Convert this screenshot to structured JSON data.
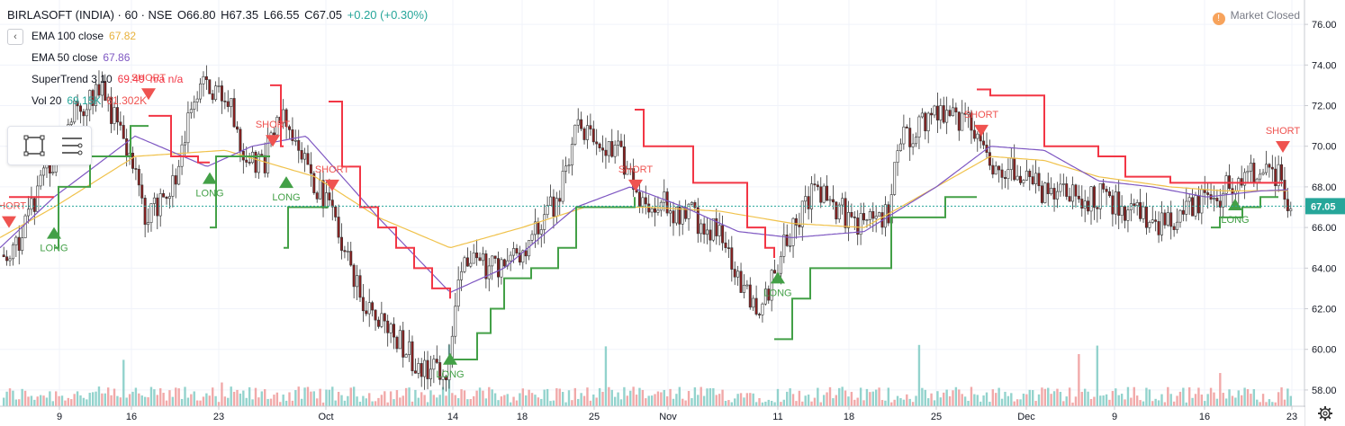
{
  "header": {
    "symbol": "BIRLASOFT (INDIA) · 60 · NSE",
    "open": "O66.80",
    "high": "H67.35",
    "low": "L66.55",
    "close": "C67.05",
    "change": "+0.20 (+0.30%)"
  },
  "indicators": [
    {
      "name": "EMA 100 close",
      "value": "67.82",
      "color": "#e8b13b"
    },
    {
      "name": "EMA 50 close",
      "value": "67.86",
      "color": "#7e57c2"
    },
    {
      "name": "SuperTrend 3 10",
      "value": "69.49",
      "extra": "n/a n/a",
      "color": "#f23645"
    },
    {
      "name": "Vol 20",
      "value": "69.15K",
      "extra": "61.302K",
      "color": "#26a69a"
    }
  ],
  "market_status": "Market Closed",
  "last_price_label": "67.05",
  "colors": {
    "up": "#4a7a45",
    "down": "#8b2020",
    "supertrend_up": "#43a047",
    "supertrend_down": "#f23645",
    "ema50": "#7e57c2",
    "ema100": "#f0c24b",
    "vol_up": "#80cbc4",
    "vol_down": "#ef9a9a"
  },
  "chart_data": {
    "type": "line",
    "title": "BIRLASOFT (INDIA) · 60 · NSE",
    "y_ticks": [
      58,
      60,
      62,
      64,
      66,
      68,
      70,
      72,
      74,
      76
    ],
    "ylim": [
      57.2,
      77.2
    ],
    "x_ticks": [
      "9",
      "16",
      "23",
      "Oct",
      "14",
      "18",
      "25",
      "Nov",
      "11",
      "18",
      "25",
      "Dec",
      "9",
      "16",
      "23"
    ],
    "bar_count": 420,
    "price_knots": [
      [
        0,
        64.5
      ],
      [
        20,
        65.5
      ],
      [
        50,
        68.5
      ],
      [
        80,
        71.5
      ],
      [
        110,
        73.0
      ],
      [
        140,
        70.0
      ],
      [
        160,
        66.5
      ],
      [
        190,
        68.0
      ],
      [
        220,
        73.0
      ],
      [
        250,
        72.5
      ],
      [
        270,
        69.5
      ],
      [
        290,
        69.0
      ],
      [
        310,
        71.5
      ],
      [
        330,
        70.5
      ],
      [
        350,
        68.0
      ],
      [
        370,
        66.5
      ],
      [
        395,
        63.0
      ],
      [
        420,
        61.5
      ],
      [
        445,
        60.2
      ],
      [
        470,
        59.0
      ],
      [
        495,
        58.8
      ],
      [
        510,
        64.5
      ],
      [
        540,
        64.0
      ],
      [
        570,
        64.5
      ],
      [
        595,
        66.0
      ],
      [
        620,
        67.5
      ],
      [
        640,
        71.0
      ],
      [
        665,
        70.0
      ],
      [
        690,
        69.5
      ],
      [
        710,
        67.5
      ],
      [
        740,
        67.0
      ],
      [
        770,
        66.5
      ],
      [
        800,
        65.5
      ],
      [
        825,
        63.0
      ],
      [
        845,
        62.0
      ],
      [
        865,
        64.5
      ],
      [
        885,
        66.5
      ],
      [
        905,
        68.0
      ],
      [
        930,
        67.0
      ],
      [
        955,
        66.0
      ],
      [
        985,
        66.5
      ],
      [
        995,
        70.0
      ],
      [
        1020,
        71.0
      ],
      [
        1050,
        71.5
      ],
      [
        1080,
        71.0
      ],
      [
        1100,
        69.0
      ],
      [
        1130,
        69.0
      ],
      [
        1160,
        67.5
      ],
      [
        1190,
        67.5
      ],
      [
        1220,
        67.5
      ],
      [
        1245,
        67.0
      ],
      [
        1270,
        66.5
      ],
      [
        1300,
        66.0
      ],
      [
        1325,
        67.0
      ],
      [
        1350,
        67.5
      ],
      [
        1375,
        68.5
      ],
      [
        1400,
        69.0
      ],
      [
        1420,
        68.5
      ],
      [
        1433,
        67.05
      ]
    ],
    "ema100_knots": [
      [
        0,
        65.5
      ],
      [
        60,
        67.0
      ],
      [
        150,
        69.5
      ],
      [
        250,
        69.8
      ],
      [
        350,
        68.5
      ],
      [
        420,
        66.5
      ],
      [
        500,
        65.0
      ],
      [
        580,
        66.0
      ],
      [
        650,
        67.0
      ],
      [
        720,
        67.0
      ],
      [
        800,
        66.8
      ],
      [
        880,
        66.2
      ],
      [
        960,
        66.0
      ],
      [
        1040,
        68.0
      ],
      [
        1100,
        69.5
      ],
      [
        1160,
        69.3
      ],
      [
        1220,
        68.5
      ],
      [
        1300,
        68.0
      ],
      [
        1360,
        67.8
      ],
      [
        1433,
        67.82
      ]
    ],
    "ema50_knots": [
      [
        0,
        65.0
      ],
      [
        60,
        67.5
      ],
      [
        150,
        70.5
      ],
      [
        230,
        69.0
      ],
      [
        280,
        70.0
      ],
      [
        340,
        70.5
      ],
      [
        420,
        66.5
      ],
      [
        500,
        62.8
      ],
      [
        560,
        64.0
      ],
      [
        640,
        67.0
      ],
      [
        700,
        68.0
      ],
      [
        760,
        67.0
      ],
      [
        820,
        65.8
      ],
      [
        880,
        65.5
      ],
      [
        960,
        65.8
      ],
      [
        1040,
        68.0
      ],
      [
        1100,
        70.0
      ],
      [
        1160,
        69.8
      ],
      [
        1220,
        68.3
      ],
      [
        1280,
        68.0
      ],
      [
        1340,
        67.5
      ],
      [
        1400,
        67.8
      ],
      [
        1433,
        67.86
      ]
    ],
    "supertrend_segments": [
      {
        "trend": "down",
        "points": [
          [
            10,
            67.5
          ],
          [
            60,
            67.5
          ]
        ]
      },
      {
        "trend": "up",
        "points": [
          [
            60,
            65.0
          ],
          [
            65,
            68.0
          ],
          [
            95,
            68.0
          ],
          [
            100,
            69.5
          ],
          [
            140,
            69.5
          ],
          [
            145,
            71.0
          ],
          [
            165,
            71.0
          ]
        ]
      },
      {
        "trend": "down",
        "points": [
          [
            165,
            71.5
          ],
          [
            190,
            69.5
          ],
          [
            212,
            69.5
          ],
          [
            220,
            69.2
          ],
          [
            233,
            69.2
          ]
        ]
      },
      {
        "trend": "up",
        "points": [
          [
            233,
            66.0
          ],
          [
            240,
            69.5
          ],
          [
            300,
            69.5
          ]
        ]
      },
      {
        "trend": "down",
        "points": [
          [
            300,
            73.0
          ],
          [
            312,
            70.0
          ],
          [
            315,
            70.0
          ]
        ]
      },
      {
        "trend": "up",
        "points": [
          [
            315,
            65.0
          ],
          [
            320,
            67.0
          ],
          [
            365,
            67.0
          ]
        ]
      },
      {
        "trend": "down",
        "points": [
          [
            365,
            72.2
          ],
          [
            380,
            69.0
          ],
          [
            400,
            67.0
          ],
          [
            420,
            66.0
          ],
          [
            440,
            65.0
          ],
          [
            460,
            64.0
          ],
          [
            480,
            63.0
          ],
          [
            500,
            62.5
          ]
        ]
      },
      {
        "trend": "up",
        "points": [
          [
            500,
            59.5
          ],
          [
            530,
            60.8
          ],
          [
            545,
            62.0
          ],
          [
            560,
            63.5
          ],
          [
            590,
            64.0
          ],
          [
            620,
            65.0
          ],
          [
            640,
            67.0
          ],
          [
            700,
            67.0
          ],
          [
            705,
            67.5
          ]
        ]
      },
      {
        "trend": "down",
        "points": [
          [
            705,
            71.8
          ],
          [
            715,
            70.0
          ],
          [
            755,
            70.0
          ],
          [
            770,
            68.2
          ],
          [
            810,
            68.2
          ],
          [
            830,
            66.0
          ],
          [
            850,
            65.0
          ],
          [
            860,
            64.5
          ]
        ]
      },
      {
        "trend": "up",
        "points": [
          [
            860,
            60.5
          ],
          [
            870,
            60.5
          ],
          [
            880,
            62.5
          ],
          [
            900,
            64.0
          ],
          [
            985,
            64.0
          ],
          [
            990,
            66.5
          ],
          [
            1030,
            66.5
          ],
          [
            1050,
            67.5
          ],
          [
            1085,
            67.5
          ]
        ]
      },
      {
        "trend": "down",
        "points": [
          [
            1085,
            72.8
          ],
          [
            1100,
            72.5
          ],
          [
            1140,
            72.5
          ],
          [
            1160,
            70.0
          ],
          [
            1220,
            69.5
          ],
          [
            1250,
            68.5
          ],
          [
            1300,
            68.2
          ],
          [
            1360,
            68.2
          ],
          [
            1425,
            68.2
          ]
        ]
      },
      {
        "trend": "up",
        "points": [
          [
            1345,
            66.0
          ],
          [
            1355,
            66.5
          ],
          [
            1380,
            67.0
          ],
          [
            1400,
            67.5
          ],
          [
            1420,
            67.5
          ]
        ]
      }
    ],
    "signals": [
      {
        "type": "SHORT",
        "x": 10,
        "y": 66.2
      },
      {
        "type": "LONG",
        "x": 60,
        "y": 65.8
      },
      {
        "type": "SHORT",
        "x": 165,
        "y": 72.5
      },
      {
        "type": "LONG",
        "x": 233,
        "y": 68.5
      },
      {
        "type": "SHORT",
        "x": 303,
        "y": 70.2
      },
      {
        "type": "LONG",
        "x": 318,
        "y": 68.3
      },
      {
        "type": "SHORT",
        "x": 369,
        "y": 68.0
      },
      {
        "type": "LONG",
        "x": 500,
        "y": 59.6
      },
      {
        "type": "SHORT",
        "x": 706,
        "y": 68.0
      },
      {
        "type": "LONG",
        "x": 864,
        "y": 63.6
      },
      {
        "type": "SHORT",
        "x": 1090,
        "y": 70.7
      },
      {
        "type": "LONG",
        "x": 1372,
        "y": 67.2
      },
      {
        "type": "SHORT",
        "x": 1425,
        "y": 69.9
      }
    ]
  }
}
